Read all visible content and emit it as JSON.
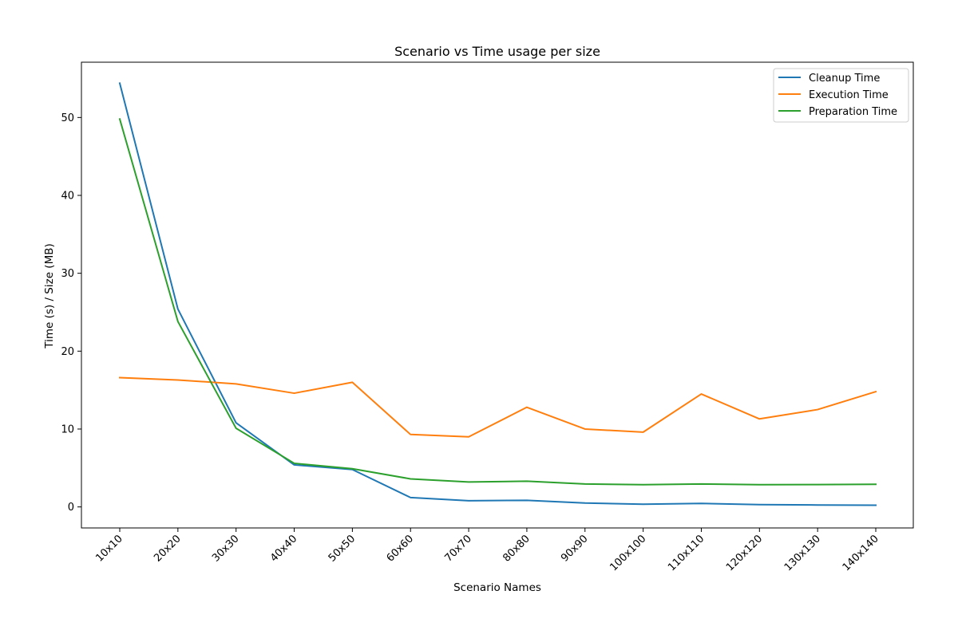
{
  "chart_data": {
    "type": "line",
    "title": "Scenario vs Time usage per size",
    "xlabel": "Scenario Names",
    "ylabel": "Time (s) / Size (MB)",
    "categories": [
      "10x10",
      "20x20",
      "30x30",
      "40x40",
      "50x50",
      "60x60",
      "70x70",
      "80x80",
      "90x90",
      "100x100",
      "110x110",
      "120x120",
      "130x130",
      "140x140"
    ],
    "ylim": [
      -2.7,
      57.1
    ],
    "yticks": [
      0,
      10,
      20,
      30,
      40,
      50
    ],
    "grid": false,
    "legend_position": "upper right",
    "series": [
      {
        "name": "Cleanup Time",
        "color": "#1f77b4",
        "values": [
          54.4,
          25.4,
          10.8,
          5.4,
          4.8,
          1.2,
          0.8,
          0.85,
          0.5,
          0.35,
          0.45,
          0.3,
          0.25,
          0.22
        ]
      },
      {
        "name": "Execution Time",
        "color": "#ff7f0e",
        "values": [
          16.6,
          16.3,
          15.8,
          14.6,
          16.0,
          9.3,
          9.0,
          12.8,
          10.0,
          9.6,
          14.5,
          11.3,
          12.5,
          14.8
        ]
      },
      {
        "name": "Preparation Time",
        "color": "#2ca02c",
        "values": [
          49.8,
          23.8,
          10.1,
          5.6,
          4.9,
          3.6,
          3.2,
          3.3,
          2.95,
          2.85,
          2.95,
          2.85,
          2.87,
          2.9
        ]
      }
    ]
  }
}
